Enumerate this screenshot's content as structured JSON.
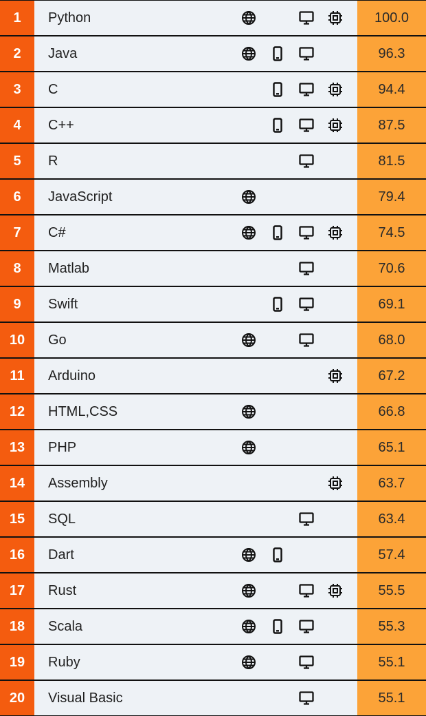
{
  "colors": {
    "rank_bg": "#f45c0f",
    "score_bg": "#fca338",
    "row_bg": "#eef2f6",
    "separator": "#111111"
  },
  "icon_names": {
    "web": "globe-icon",
    "mobile": "smartphone-icon",
    "desktop": "monitor-icon",
    "embedded": "chip-icon"
  },
  "rows": [
    {
      "rank": "1",
      "name": "Python",
      "score": "100.0",
      "web": true,
      "mobile": false,
      "desktop": true,
      "embedded": true
    },
    {
      "rank": "2",
      "name": "Java",
      "score": "96.3",
      "web": true,
      "mobile": true,
      "desktop": true,
      "embedded": false
    },
    {
      "rank": "3",
      "name": "C",
      "score": "94.4",
      "web": false,
      "mobile": true,
      "desktop": true,
      "embedded": true
    },
    {
      "rank": "4",
      "name": "C++",
      "score": "87.5",
      "web": false,
      "mobile": true,
      "desktop": true,
      "embedded": true
    },
    {
      "rank": "5",
      "name": "R",
      "score": "81.5",
      "web": false,
      "mobile": false,
      "desktop": true,
      "embedded": false
    },
    {
      "rank": "6",
      "name": "JavaScript",
      "score": "79.4",
      "web": true,
      "mobile": false,
      "desktop": false,
      "embedded": false
    },
    {
      "rank": "7",
      "name": "C#",
      "score": "74.5",
      "web": true,
      "mobile": true,
      "desktop": true,
      "embedded": true
    },
    {
      "rank": "8",
      "name": "Matlab",
      "score": "70.6",
      "web": false,
      "mobile": false,
      "desktop": true,
      "embedded": false
    },
    {
      "rank": "9",
      "name": "Swift",
      "score": "69.1",
      "web": false,
      "mobile": true,
      "desktop": true,
      "embedded": false
    },
    {
      "rank": "10",
      "name": "Go",
      "score": "68.0",
      "web": true,
      "mobile": false,
      "desktop": true,
      "embedded": false
    },
    {
      "rank": "11",
      "name": "Arduino",
      "score": "67.2",
      "web": false,
      "mobile": false,
      "desktop": false,
      "embedded": true
    },
    {
      "rank": "12",
      "name": "HTML,CSS",
      "score": "66.8",
      "web": true,
      "mobile": false,
      "desktop": false,
      "embedded": false
    },
    {
      "rank": "13",
      "name": "PHP",
      "score": "65.1",
      "web": true,
      "mobile": false,
      "desktop": false,
      "embedded": false
    },
    {
      "rank": "14",
      "name": "Assembly",
      "score": "63.7",
      "web": false,
      "mobile": false,
      "desktop": false,
      "embedded": true
    },
    {
      "rank": "15",
      "name": "SQL",
      "score": "63.4",
      "web": false,
      "mobile": false,
      "desktop": true,
      "embedded": false
    },
    {
      "rank": "16",
      "name": "Dart",
      "score": "57.4",
      "web": true,
      "mobile": true,
      "desktop": false,
      "embedded": false
    },
    {
      "rank": "17",
      "name": "Rust",
      "score": "55.5",
      "web": true,
      "mobile": false,
      "desktop": true,
      "embedded": true
    },
    {
      "rank": "18",
      "name": "Scala",
      "score": "55.3",
      "web": true,
      "mobile": true,
      "desktop": true,
      "embedded": false
    },
    {
      "rank": "19",
      "name": "Ruby",
      "score": "55.1",
      "web": true,
      "mobile": false,
      "desktop": true,
      "embedded": false
    },
    {
      "rank": "20",
      "name": "Visual Basic",
      "score": "55.1",
      "web": false,
      "mobile": false,
      "desktop": true,
      "embedded": false
    }
  ]
}
